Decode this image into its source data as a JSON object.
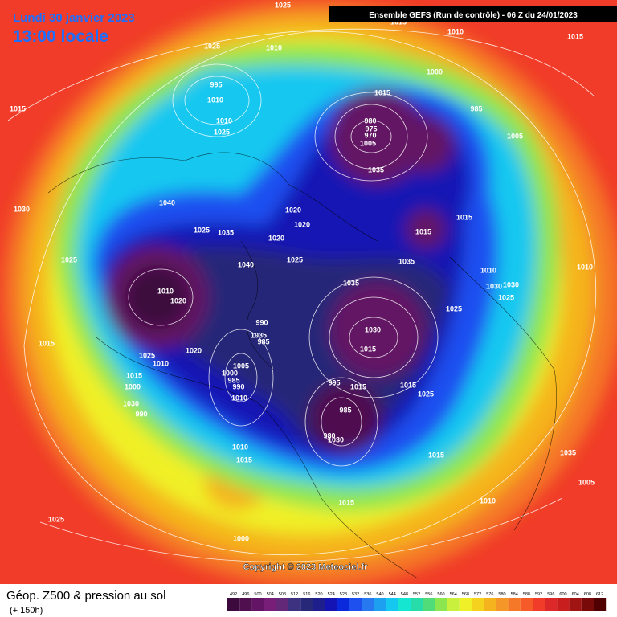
{
  "header": {
    "date": "Lundi 30 janvier 2023",
    "time": "13:00 locale",
    "model": "Ensemble GEFS  (Run de contrôle)  - 06 Z du 24/01/2023"
  },
  "footer": {
    "title": "Géop. Z500 & pression au sol",
    "lead": "(+ 150h)",
    "copyright": "Copyright © 2023 Meteociel.fr"
  },
  "legend": {
    "values": [
      492,
      496,
      500,
      504,
      508,
      512,
      516,
      520,
      524,
      528,
      532,
      536,
      540,
      544,
      548,
      552,
      556,
      560,
      564,
      568,
      572,
      576,
      580,
      584,
      588,
      592,
      596,
      600,
      604,
      608,
      612
    ],
    "colors": [
      "#3c0a3c",
      "#501050",
      "#641464",
      "#781e78",
      "#642878",
      "#3c3280",
      "#282878",
      "#1e1e8c",
      "#1414b4",
      "#0a28dc",
      "#1e50f0",
      "#2878f0",
      "#1ea0f0",
      "#14c8f0",
      "#14e6d2",
      "#28dcaa",
      "#50dc78",
      "#8ce650",
      "#c8f03c",
      "#f0f028",
      "#f5d21e",
      "#f5b41e",
      "#f59628",
      "#f57828",
      "#f55a28",
      "#f03c28",
      "#dc2828",
      "#c81e1e",
      "#a01414",
      "#780a0a",
      "#500000"
    ]
  },
  "pressure_labels": [
    "1025",
    "1015",
    "1010",
    "1015",
    "1025",
    "1010",
    "1000",
    "995",
    "1010",
    "1015",
    "1015",
    "985",
    "980",
    "975",
    "970",
    "1005",
    "1010",
    "1025",
    "1005",
    "1035",
    "1040",
    "1020",
    "1015",
    "1030",
    "1025",
    "1035",
    "1020",
    "1020",
    "1015",
    "1025",
    "1035",
    "1025",
    "1040",
    "1010",
    "1010",
    "1010",
    "1020",
    "1035",
    "1030",
    "1030",
    "1025",
    "1025",
    "990",
    "1030",
    "1035",
    "985",
    "1015",
    "1015",
    "1020",
    "1025",
    "1010",
    "1005",
    "1000",
    "985",
    "990",
    "1010",
    "1015",
    "1000",
    "995",
    "1015",
    "1015",
    "1025",
    "1030",
    "990",
    "985",
    "980",
    "1030",
    "1010",
    "1015",
    "1035",
    "1015",
    "1005",
    "1010",
    "1015",
    "1025",
    "1000"
  ]
}
